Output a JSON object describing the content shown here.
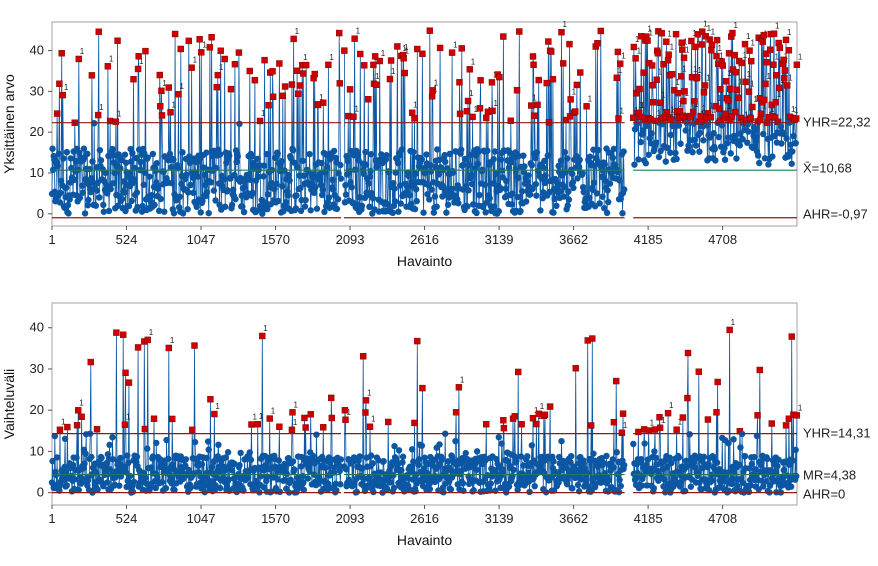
{
  "chart_data": [
    {
      "type": "line",
      "subtype": "individuals-control-chart",
      "ylabel": "Yksittäinen arvo",
      "xlabel": "Havainto",
      "x_ticks": [
        1,
        524,
        1047,
        1570,
        2093,
        2616,
        3139,
        3662,
        4185,
        4708
      ],
      "y_ticks": [
        0,
        10,
        20,
        30,
        40
      ],
      "xlim": [
        1,
        5230
      ],
      "ylim": [
        -3,
        47
      ],
      "control_lines": {
        "ucl": {
          "label": "YHR=22,32",
          "value": 22.32,
          "color": "#8b1a1a"
        },
        "center": {
          "label": "X̄=10,68",
          "value": 10.68,
          "color": "#1f7a5c"
        },
        "lcl": {
          "label": "AHR=-0,97",
          "value": -0.97,
          "color": "#8b1a1a"
        }
      },
      "gaps": [
        [
          2030,
          2050
        ],
        [
          4020,
          4080
        ]
      ],
      "series_color": "#0b57a4",
      "out_of_control_color": "#cc0000",
      "out_of_control_marker_label": "1"
    },
    {
      "type": "line",
      "subtype": "moving-range-chart",
      "ylabel": "Vaihteluväli",
      "xlabel": "Havainto",
      "x_ticks": [
        1,
        524,
        1047,
        1570,
        2093,
        2616,
        3139,
        3662,
        4185,
        4708
      ],
      "y_ticks": [
        0,
        10,
        20,
        30,
        40
      ],
      "xlim": [
        1,
        5230
      ],
      "ylim": [
        -3,
        46
      ],
      "control_lines": {
        "ucl": {
          "label": "YHR=14,31",
          "value": 14.31,
          "color": "#8b1a1a"
        },
        "center": {
          "label": "MR=4,38",
          "value": 4.38,
          "color": "#1f7a5c"
        },
        "lcl": {
          "label": "AHR=0",
          "value": 0,
          "color": "#8b1a1a"
        }
      },
      "gaps": [
        [
          2030,
          2050
        ],
        [
          4020,
          4080
        ]
      ],
      "series_color": "#0b57a4",
      "out_of_control_color": "#cc0000",
      "out_of_control_marker_label": "1"
    }
  ]
}
